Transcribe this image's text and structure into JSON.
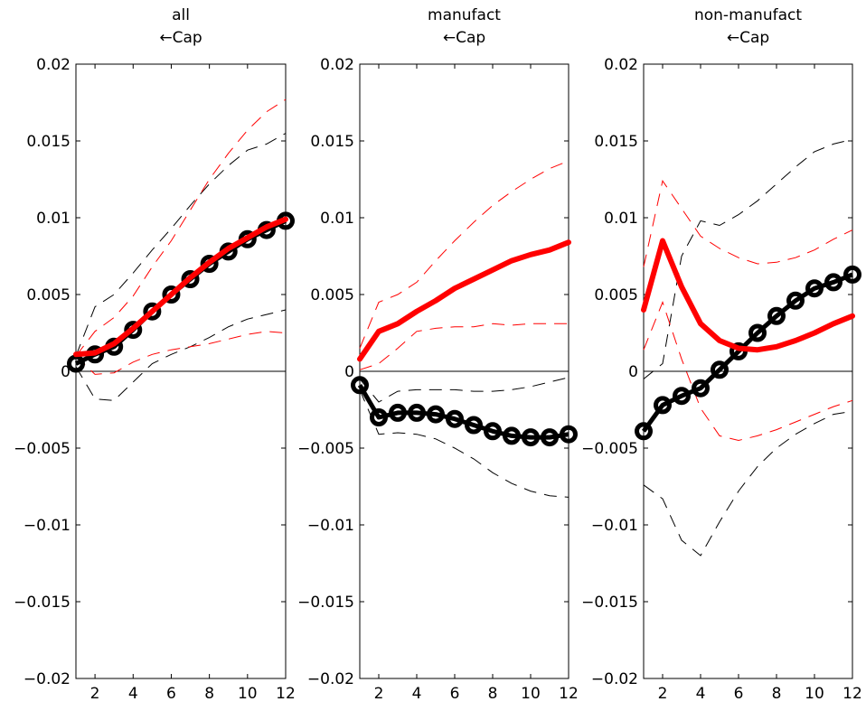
{
  "chart_data": [
    {
      "type": "line",
      "title_lines": [
        "all",
        "←Cap"
      ],
      "x": [
        1,
        2,
        3,
        4,
        5,
        6,
        7,
        8,
        9,
        10,
        11,
        12
      ],
      "xticks": [
        "2",
        "4",
        "6",
        "8",
        "10",
        "12"
      ],
      "xlim": [
        1,
        12
      ],
      "ylim": [
        -0.02,
        0.02
      ],
      "yticks": [
        "0.02",
        "0.015",
        "0.01",
        "0.005",
        "0",
        "−0.005",
        "−0.01",
        "−0.015",
        "−0.02"
      ],
      "series": [
        {
          "role": "black_response",
          "style": "solid-markers",
          "color": "#000000",
          "values": [
            0.0005,
            0.0011,
            0.0016,
            0.0027,
            0.0039,
            0.005,
            0.006,
            0.007,
            0.0078,
            0.0086,
            0.0092,
            0.0098
          ]
        },
        {
          "role": "red_response",
          "style": "thick",
          "color": "#ff0000",
          "values": [
            0.0011,
            0.0012,
            0.0018,
            0.0028,
            0.0039,
            0.005,
            0.0061,
            0.0071,
            0.008,
            0.0087,
            0.0094,
            0.0099
          ]
        },
        {
          "role": "black_upper",
          "style": "dashed",
          "color": "#000000",
          "values": [
            0.001,
            0.0042,
            0.005,
            0.0064,
            0.0079,
            0.0093,
            0.0108,
            0.0122,
            0.0134,
            0.0144,
            0.0148,
            0.0155
          ]
        },
        {
          "role": "black_lower",
          "style": "dashed",
          "color": "#000000",
          "values": [
            0.0003,
            -0.0018,
            -0.0019,
            -0.0007,
            0.0005,
            0.0011,
            0.0016,
            0.0022,
            0.0029,
            0.0034,
            0.0037,
            0.004
          ]
        },
        {
          "role": "red_upper",
          "style": "dashed",
          "color": "#ff0000",
          "values": [
            0.001,
            0.0026,
            0.0035,
            0.0049,
            0.0068,
            0.0085,
            0.0105,
            0.0125,
            0.0142,
            0.0157,
            0.0169,
            0.0177
          ]
        },
        {
          "role": "red_lower",
          "style": "dashed",
          "color": "#ff0000",
          "values": [
            0.001,
            -0.0002,
            -0.0001,
            0.0006,
            0.0011,
            0.0014,
            0.0016,
            0.0018,
            0.0021,
            0.0024,
            0.0026,
            0.0025
          ]
        }
      ]
    },
    {
      "type": "line",
      "title_lines": [
        "manufact",
        "←Cap"
      ],
      "x": [
        1,
        2,
        3,
        4,
        5,
        6,
        7,
        8,
        9,
        10,
        11,
        12
      ],
      "xticks": [
        "2",
        "4",
        "6",
        "8",
        "10",
        "12"
      ],
      "xlim": [
        1,
        12
      ],
      "ylim": [
        -0.02,
        0.02
      ],
      "yticks": [
        "0.02",
        "0.015",
        "0.01",
        "0.005",
        "0",
        "−0.005",
        "−0.01",
        "−0.015",
        "−0.02"
      ],
      "series": [
        {
          "role": "black_response",
          "style": "solid-markers",
          "color": "#000000",
          "values": [
            -0.0009,
            -0.003,
            -0.0027,
            -0.0027,
            -0.0028,
            -0.0031,
            -0.0035,
            -0.0039,
            -0.0042,
            -0.0043,
            -0.0043,
            -0.0041
          ]
        },
        {
          "role": "red_response",
          "style": "thick",
          "color": "#ff0000",
          "values": [
            0.0008,
            0.0026,
            0.0031,
            0.0039,
            0.0046,
            0.0054,
            0.006,
            0.0066,
            0.0072,
            0.0076,
            0.0079,
            0.0084
          ]
        },
        {
          "role": "black_upper",
          "style": "dashed",
          "color": "#000000",
          "values": [
            -0.0005,
            -0.002,
            -0.0013,
            -0.0012,
            -0.0012,
            -0.0012,
            -0.0013,
            -0.0013,
            -0.0012,
            -0.001,
            -0.0007,
            -0.0004
          ]
        },
        {
          "role": "black_lower",
          "style": "dashed",
          "color": "#000000",
          "values": [
            -0.0012,
            -0.0041,
            -0.004,
            -0.0041,
            -0.0044,
            -0.005,
            -0.0057,
            -0.0066,
            -0.0073,
            -0.0078,
            -0.0081,
            -0.0082
          ]
        },
        {
          "role": "red_upper",
          "style": "dashed",
          "color": "#ff0000",
          "values": [
            0.0015,
            0.0045,
            0.005,
            0.0058,
            0.0072,
            0.0085,
            0.0097,
            0.0108,
            0.0117,
            0.0125,
            0.0132,
            0.0137
          ]
        },
        {
          "role": "red_lower",
          "style": "dashed",
          "color": "#ff0000",
          "values": [
            0.0001,
            0.0005,
            0.0015,
            0.0026,
            0.0028,
            0.0029,
            0.0029,
            0.0031,
            0.003,
            0.0031,
            0.0031,
            0.0031
          ]
        }
      ]
    },
    {
      "type": "line",
      "title_lines": [
        "non-manufact",
        "←Cap"
      ],
      "x": [
        1,
        2,
        3,
        4,
        5,
        6,
        7,
        8,
        9,
        10,
        11,
        12
      ],
      "xticks": [
        "2",
        "4",
        "6",
        "8",
        "10",
        "12"
      ],
      "xlim": [
        1,
        12
      ],
      "ylim": [
        -0.02,
        0.02
      ],
      "yticks": [
        "0.02",
        "0.015",
        "0.01",
        "0.005",
        "0",
        "−0.005",
        "−0.01",
        "−0.015",
        "−0.02"
      ],
      "series": [
        {
          "role": "black_response",
          "style": "solid-markers",
          "color": "#000000",
          "values": [
            -0.0039,
            -0.0022,
            -0.0016,
            -0.0011,
            0.0001,
            0.0013,
            0.0025,
            0.0036,
            0.0046,
            0.0054,
            0.0058,
            0.0063
          ]
        },
        {
          "role": "red_response",
          "style": "thick",
          "color": "#ff0000",
          "values": [
            0.004,
            0.0085,
            0.0055,
            0.0031,
            0.002,
            0.0015,
            0.0014,
            0.0016,
            0.002,
            0.0025,
            0.0031,
            0.0036
          ]
        },
        {
          "role": "black_upper",
          "style": "dashed",
          "color": "#000000",
          "values": [
            -0.0005,
            0.0005,
            0.0075,
            0.0098,
            0.0095,
            0.0102,
            0.0111,
            0.0122,
            0.0133,
            0.0143,
            0.0148,
            0.0151
          ]
        },
        {
          "role": "black_lower",
          "style": "dashed",
          "color": "#000000",
          "values": [
            -0.0074,
            -0.0083,
            -0.011,
            -0.012,
            -0.0098,
            -0.0078,
            -0.0062,
            -0.005,
            -0.0041,
            -0.0034,
            -0.0028,
            -0.0026
          ]
        },
        {
          "role": "red_upper",
          "style": "dashed",
          "color": "#ff0000",
          "values": [
            0.0068,
            0.0124,
            0.0106,
            0.0088,
            0.008,
            0.0074,
            0.007,
            0.0071,
            0.0074,
            0.0079,
            0.0086,
            0.0092
          ]
        },
        {
          "role": "red_lower",
          "style": "dashed",
          "color": "#ff0000",
          "values": [
            0.0014,
            0.0045,
            0.0008,
            -0.0024,
            -0.0042,
            -0.0045,
            -0.0042,
            -0.0038,
            -0.0033,
            -0.0028,
            -0.0023,
            -0.0019
          ]
        }
      ]
    }
  ]
}
